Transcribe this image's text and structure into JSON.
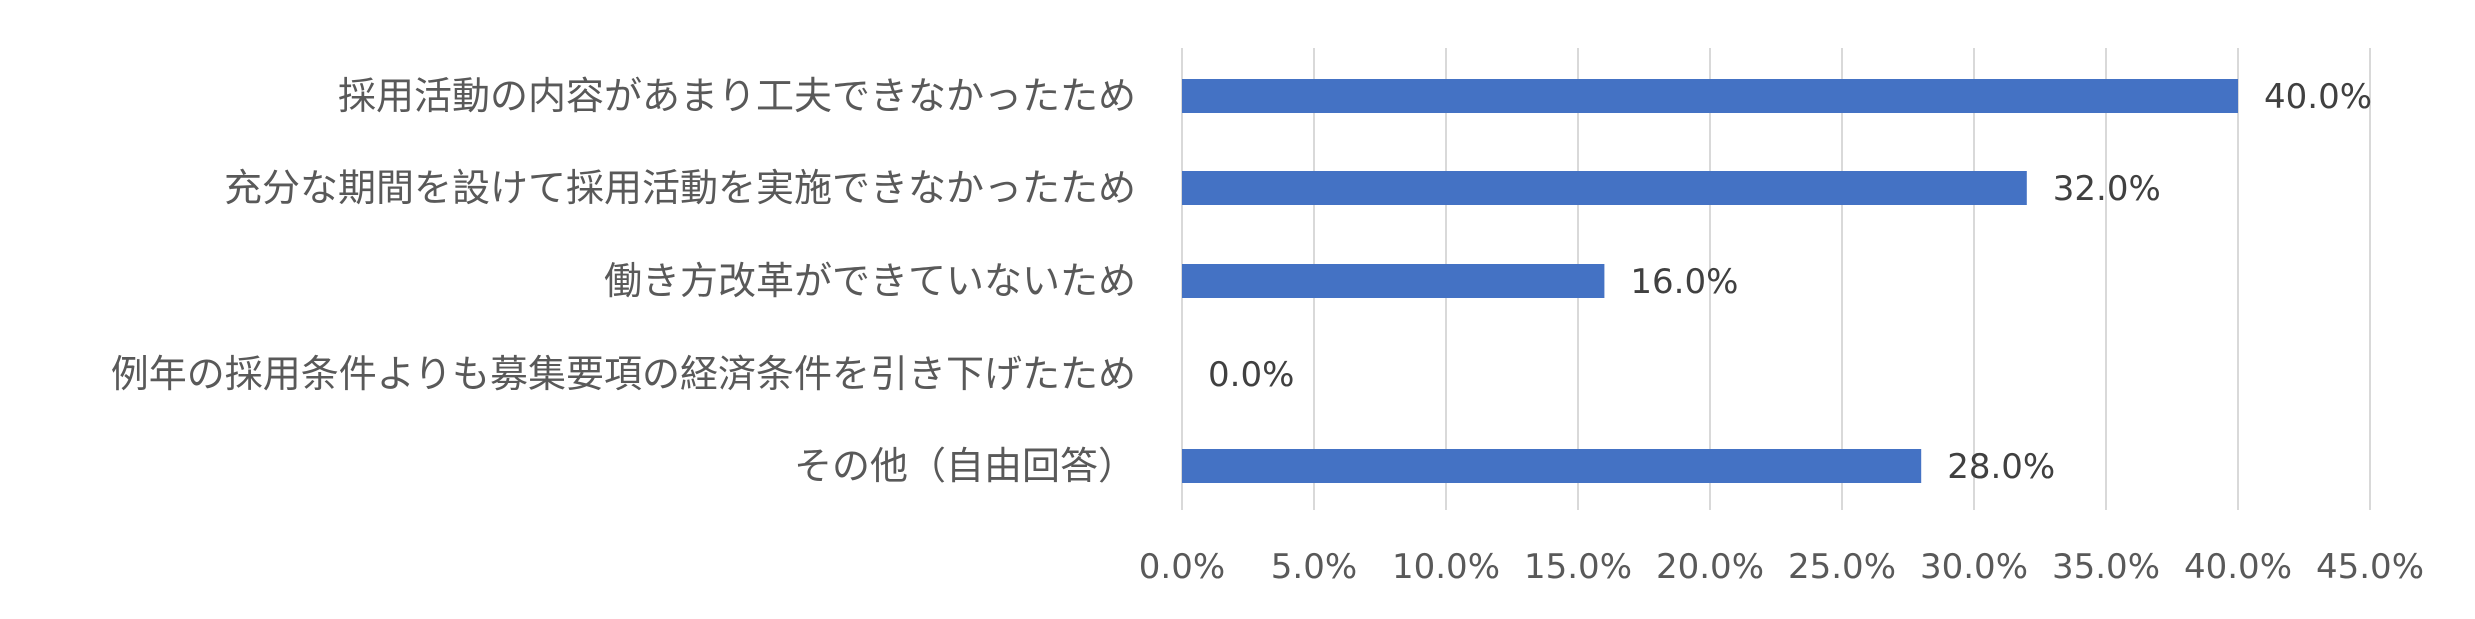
{
  "chart_data": {
    "type": "bar",
    "orientation": "horizontal",
    "categories": [
      "採用活動の内容があまり工夫できなかったため",
      "充分な期間を設けて採用活動を実施できなかったため",
      "働き方改革ができていないため",
      "例年の採用条件よりも募集要項の経済条件を引き下げたため",
      "その他（自由回答）"
    ],
    "values": [
      40.0,
      32.0,
      16.0,
      0.0,
      28.0
    ],
    "data_labels": [
      "40.0%",
      "32.0%",
      "16.0%",
      "0.0%",
      "28.0%"
    ],
    "x_ticks": [
      0,
      5,
      10,
      15,
      20,
      25,
      30,
      35,
      40,
      45
    ],
    "x_tick_labels": [
      "0.0%",
      "5.0%",
      "10.0%",
      "15.0%",
      "20.0%",
      "25.0%",
      "30.0%",
      "35.0%",
      "40.0%",
      "45.0%"
    ],
    "xlim": [
      0,
      45
    ],
    "grid": true,
    "legend": "none",
    "bar_color": "#4472C4",
    "title": "",
    "xlabel": "",
    "ylabel": ""
  }
}
